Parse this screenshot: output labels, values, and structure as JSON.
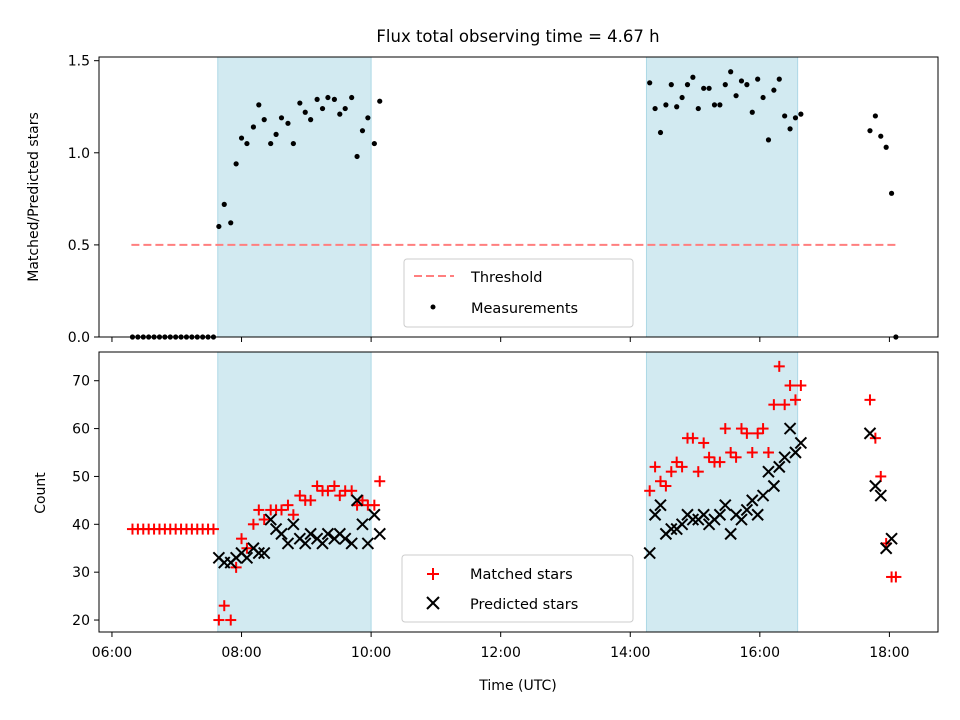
{
  "figure": {
    "title": "Flux total observing time = 4.67 h",
    "colors": {
      "shade": "#add8e6",
      "threshold": "#ff7f7f",
      "measurement": "#000000",
      "matched": "#ff0000",
      "predicted": "#000000"
    }
  },
  "chart_data": [
    {
      "type": "scatter",
      "panel": "top",
      "title": "Flux total observing time = 4.67 h",
      "xlabel": "",
      "ylabel": "Matched/Predicted stars",
      "xlim": [
        "05:48",
        "18:45"
      ],
      "ylim": [
        0,
        1.52
      ],
      "yticks": [
        "0.0",
        "0.5",
        "1.0",
        "1.5"
      ],
      "shaded_intervals": [
        [
          "07:38",
          "10:00"
        ],
        [
          "14:15",
          "16:35"
        ]
      ],
      "legend_position": "lower center",
      "threshold": {
        "name": "Threshold",
        "y": 0.5,
        "x": [
          "06:18",
          "18:06"
        ]
      },
      "series": [
        {
          "name": "Measurements",
          "marker": "dot",
          "points": [
            [
              "06:19",
              0
            ],
            [
              "06:24",
              0
            ],
            [
              "06:29",
              0
            ],
            [
              "06:34",
              0
            ],
            [
              "06:39",
              0
            ],
            [
              "06:44",
              0
            ],
            [
              "06:49",
              0
            ],
            [
              "06:54",
              0
            ],
            [
              "06:59",
              0
            ],
            [
              "07:04",
              0
            ],
            [
              "07:09",
              0
            ],
            [
              "07:14",
              0
            ],
            [
              "07:19",
              0
            ],
            [
              "07:24",
              0
            ],
            [
              "07:29",
              0
            ],
            [
              "07:34",
              0
            ],
            [
              "07:39",
              0.6
            ],
            [
              "07:44",
              0.72
            ],
            [
              "07:50",
              0.62
            ],
            [
              "07:55",
              0.94
            ],
            [
              "08:00",
              1.08
            ],
            [
              "08:05",
              1.05
            ],
            [
              "08:11",
              1.14
            ],
            [
              "08:16",
              1.26
            ],
            [
              "08:21",
              1.18
            ],
            [
              "08:27",
              1.05
            ],
            [
              "08:32",
              1.1
            ],
            [
              "08:37",
              1.19
            ],
            [
              "08:43",
              1.16
            ],
            [
              "08:48",
              1.05
            ],
            [
              "08:54",
              1.27
            ],
            [
              "08:59",
              1.22
            ],
            [
              "09:04",
              1.18
            ],
            [
              "09:10",
              1.29
            ],
            [
              "09:15",
              1.24
            ],
            [
              "09:20",
              1.3
            ],
            [
              "09:26",
              1.29
            ],
            [
              "09:31",
              1.21
            ],
            [
              "09:36",
              1.24
            ],
            [
              "09:42",
              1.3
            ],
            [
              "09:47",
              0.98
            ],
            [
              "09:52",
              1.12
            ],
            [
              "09:57",
              1.19
            ],
            [
              "10:03",
              1.05
            ],
            [
              "10:08",
              1.28
            ],
            [
              "14:18",
              1.38
            ],
            [
              "14:23",
              1.24
            ],
            [
              "14:28",
              1.11
            ],
            [
              "14:33",
              1.26
            ],
            [
              "14:38",
              1.37
            ],
            [
              "14:43",
              1.25
            ],
            [
              "14:48",
              1.3
            ],
            [
              "14:53",
              1.37
            ],
            [
              "14:58",
              1.41
            ],
            [
              "15:03",
              1.24
            ],
            [
              "15:08",
              1.35
            ],
            [
              "15:13",
              1.35
            ],
            [
              "15:18",
              1.26
            ],
            [
              "15:23",
              1.26
            ],
            [
              "15:28",
              1.37
            ],
            [
              "15:33",
              1.44
            ],
            [
              "15:38",
              1.31
            ],
            [
              "15:43",
              1.39
            ],
            [
              "15:48",
              1.37
            ],
            [
              "15:53",
              1.22
            ],
            [
              "15:58",
              1.4
            ],
            [
              "16:03",
              1.3
            ],
            [
              "16:08",
              1.07
            ],
            [
              "16:13",
              1.34
            ],
            [
              "16:18",
              1.4
            ],
            [
              "16:23",
              1.2
            ],
            [
              "16:28",
              1.13
            ],
            [
              "16:33",
              1.19
            ],
            [
              "16:38",
              1.21
            ],
            [
              "17:42",
              1.12
            ],
            [
              "17:47",
              1.2
            ],
            [
              "17:52",
              1.09
            ],
            [
              "17:57",
              1.03
            ],
            [
              "18:02",
              0.78
            ],
            [
              "18:06",
              0
            ]
          ]
        }
      ]
    },
    {
      "type": "scatter",
      "panel": "bottom",
      "xlabel": "Time (UTC)",
      "ylabel": "Count",
      "xlim": [
        "05:48",
        "18:45"
      ],
      "ylim": [
        17.5,
        76
      ],
      "xticks": [
        "06:00",
        "08:00",
        "10:00",
        "12:00",
        "14:00",
        "16:00",
        "18:00"
      ],
      "yticks": [
        "20",
        "30",
        "40",
        "50",
        "60",
        "70"
      ],
      "shaded_intervals": [
        [
          "07:38",
          "10:00"
        ],
        [
          "14:15",
          "16:35"
        ]
      ],
      "legend_position": "lower center",
      "series": [
        {
          "name": "Matched stars",
          "marker": "plus",
          "points": [
            [
              "06:19",
              39
            ],
            [
              "06:24",
              39
            ],
            [
              "06:29",
              39
            ],
            [
              "06:34",
              39
            ],
            [
              "06:39",
              39
            ],
            [
              "06:44",
              39
            ],
            [
              "06:49",
              39
            ],
            [
              "06:54",
              39
            ],
            [
              "06:59",
              39
            ],
            [
              "07:04",
              39
            ],
            [
              "07:09",
              39
            ],
            [
              "07:14",
              39
            ],
            [
              "07:19",
              39
            ],
            [
              "07:24",
              39
            ],
            [
              "07:29",
              39
            ],
            [
              "07:34",
              39
            ],
            [
              "07:39",
              20
            ],
            [
              "07:44",
              23
            ],
            [
              "07:50",
              20
            ],
            [
              "07:55",
              31
            ],
            [
              "08:00",
              37
            ],
            [
              "08:05",
              35
            ],
            [
              "08:11",
              40
            ],
            [
              "08:16",
              43
            ],
            [
              "08:21",
              41
            ],
            [
              "08:27",
              43
            ],
            [
              "08:32",
              43
            ],
            [
              "08:37",
              43
            ],
            [
              "08:43",
              44
            ],
            [
              "08:48",
              42
            ],
            [
              "08:54",
              46
            ],
            [
              "08:59",
              45
            ],
            [
              "09:04",
              45
            ],
            [
              "09:10",
              48
            ],
            [
              "09:15",
              47
            ],
            [
              "09:20",
              47
            ],
            [
              "09:26",
              48
            ],
            [
              "09:31",
              46
            ],
            [
              "09:36",
              47
            ],
            [
              "09:42",
              47
            ],
            [
              "09:47",
              44
            ],
            [
              "09:52",
              45
            ],
            [
              "09:57",
              44
            ],
            [
              "10:03",
              44
            ],
            [
              "10:08",
              49
            ],
            [
              "14:18",
              47
            ],
            [
              "14:23",
              52
            ],
            [
              "14:28",
              49
            ],
            [
              "14:33",
              48
            ],
            [
              "14:38",
              51
            ],
            [
              "14:43",
              53
            ],
            [
              "14:48",
              52
            ],
            [
              "14:53",
              58
            ],
            [
              "14:58",
              58
            ],
            [
              "15:03",
              51
            ],
            [
              "15:08",
              57
            ],
            [
              "15:13",
              54
            ],
            [
              "15:18",
              53
            ],
            [
              "15:23",
              53
            ],
            [
              "15:28",
              60
            ],
            [
              "15:33",
              55
            ],
            [
              "15:38",
              54
            ],
            [
              "15:43",
              60
            ],
            [
              "15:48",
              59
            ],
            [
              "15:53",
              55
            ],
            [
              "15:58",
              59
            ],
            [
              "16:03",
              60
            ],
            [
              "16:08",
              55
            ],
            [
              "16:13",
              65
            ],
            [
              "16:18",
              73
            ],
            [
              "16:23",
              65
            ],
            [
              "16:28",
              69
            ],
            [
              "16:33",
              66
            ],
            [
              "16:38",
              69
            ],
            [
              "17:42",
              66
            ],
            [
              "17:47",
              58
            ],
            [
              "17:52",
              50
            ],
            [
              "17:57",
              36
            ],
            [
              "18:02",
              29
            ],
            [
              "18:06",
              29
            ]
          ]
        },
        {
          "name": "Predicted stars",
          "marker": "x",
          "points": [
            [
              "07:39",
              33
            ],
            [
              "07:44",
              32
            ],
            [
              "07:50",
              32
            ],
            [
              "07:55",
              33
            ],
            [
              "08:00",
              34
            ],
            [
              "08:05",
              33
            ],
            [
              "08:11",
              35
            ],
            [
              "08:16",
              34
            ],
            [
              "08:21",
              34
            ],
            [
              "08:27",
              41
            ],
            [
              "08:32",
              39
            ],
            [
              "08:37",
              38
            ],
            [
              "08:43",
              36
            ],
            [
              "08:48",
              40
            ],
            [
              "08:54",
              37
            ],
            [
              "08:59",
              36
            ],
            [
              "09:04",
              38
            ],
            [
              "09:10",
              37
            ],
            [
              "09:15",
              36
            ],
            [
              "09:20",
              38
            ],
            [
              "09:26",
              37
            ],
            [
              "09:31",
              38
            ],
            [
              "09:36",
              37
            ],
            [
              "09:42",
              36
            ],
            [
              "09:47",
              45
            ],
            [
              "09:52",
              40
            ],
            [
              "09:57",
              36
            ],
            [
              "10:03",
              42
            ],
            [
              "10:08",
              38
            ],
            [
              "14:18",
              34
            ],
            [
              "14:23",
              42
            ],
            [
              "14:28",
              44
            ],
            [
              "14:33",
              38
            ],
            [
              "14:38",
              39
            ],
            [
              "14:43",
              39
            ],
            [
              "14:48",
              40
            ],
            [
              "14:53",
              42
            ],
            [
              "14:58",
              41
            ],
            [
              "15:03",
              41
            ],
            [
              "15:08",
              42
            ],
            [
              "15:13",
              40
            ],
            [
              "15:18",
              41
            ],
            [
              "15:23",
              42
            ],
            [
              "15:28",
              44
            ],
            [
              "15:33",
              38
            ],
            [
              "15:38",
              42
            ],
            [
              "15:43",
              41
            ],
            [
              "15:48",
              43
            ],
            [
              "15:53",
              45
            ],
            [
              "15:58",
              42
            ],
            [
              "16:03",
              46
            ],
            [
              "16:08",
              51
            ],
            [
              "16:13",
              48
            ],
            [
              "16:18",
              52
            ],
            [
              "16:23",
              54
            ],
            [
              "16:28",
              60
            ],
            [
              "16:33",
              55
            ],
            [
              "16:38",
              57
            ],
            [
              "17:42",
              59
            ],
            [
              "17:47",
              48
            ],
            [
              "17:52",
              46
            ],
            [
              "17:57",
              35
            ],
            [
              "18:02",
              37
            ]
          ]
        }
      ]
    }
  ]
}
